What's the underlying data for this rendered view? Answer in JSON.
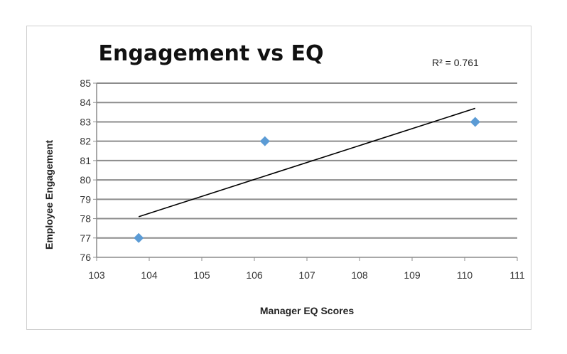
{
  "chart_data": {
    "type": "scatter",
    "title": "Engagement vs EQ",
    "xlabel": "Manager EQ Scores",
    "ylabel": "Employee Engagement",
    "xlim": [
      103,
      111
    ],
    "ylim": [
      76,
      85
    ],
    "x_ticks": [
      "103",
      "104",
      "105",
      "106",
      "107",
      "108",
      "109",
      "110",
      "111"
    ],
    "y_ticks": [
      "76",
      "77",
      "78",
      "79",
      "80",
      "81",
      "82",
      "83",
      "84",
      "85"
    ],
    "grid": true,
    "series": [
      {
        "points": [
          {
            "x": 103.8,
            "y": 77
          },
          {
            "x": 106.2,
            "y": 82
          },
          {
            "x": 110.2,
            "y": 83
          }
        ],
        "color": "#5b9bd5",
        "marker": "diamond"
      }
    ],
    "trendline": {
      "type": "linear",
      "from": {
        "x": 103.8,
        "y": 78.1
      },
      "to": {
        "x": 110.2,
        "y": 83.7
      },
      "label": "R² = 0.761",
      "color": "#000000"
    }
  }
}
